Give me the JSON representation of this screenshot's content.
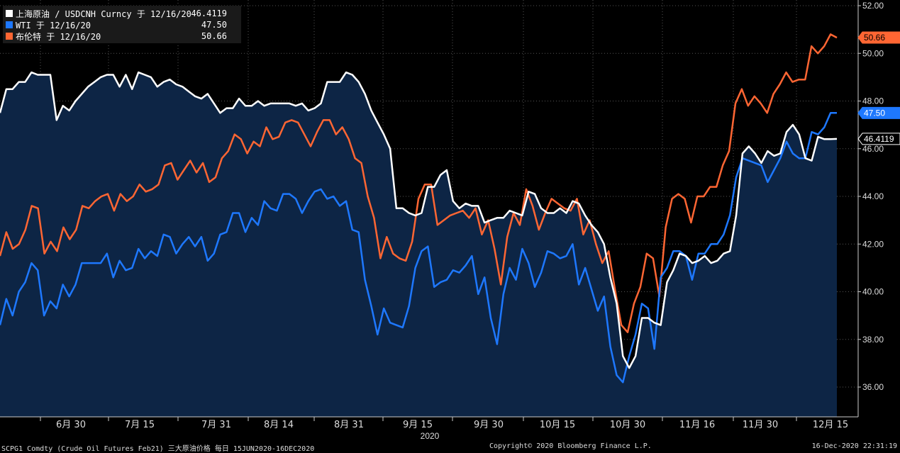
{
  "chart_data": {
    "type": "line",
    "legend": {
      "placement": "top-left",
      "entries": [
        {
          "label": "上海原油 / USDCNH Curncy 于 12/16/20",
          "value": "46.4119",
          "color": "#ffffff"
        },
        {
          "label": "WTI 于 12/16/20",
          "value": "47.50",
          "color": "#1e78ff"
        },
        {
          "label": "布伦特 于 12/16/20",
          "value": "50.66",
          "color": "#ff6633"
        }
      ]
    },
    "ylim": [
      35,
      52
    ],
    "y_ticks": [
      "52.00",
      "50.00",
      "48.00",
      "46.00",
      "44.00",
      "42.00",
      "40.00",
      "38.00",
      "36.00"
    ],
    "x_ticks": [
      "6月 30",
      "7月 15",
      "7月 31",
      "8月 14",
      "8月 31",
      "9月 15",
      "9月 30",
      "10月 15",
      "10月 30",
      "11月 16",
      "11月 30",
      "12月 15"
    ],
    "x_year_label": "2020",
    "grid": true,
    "series": [
      {
        "name": "上海原油 / USDCNH Curncy",
        "color": "#ffffff",
        "fill": "#0d2545",
        "last_label": "46.4119",
        "values": [
          47.5,
          48.5,
          48.5,
          48.8,
          48.8,
          49.2,
          49.1,
          49.1,
          49.1,
          47.2,
          47.8,
          47.6,
          48.0,
          48.3,
          48.6,
          48.8,
          49.0,
          49.1,
          49.1,
          48.6,
          49.1,
          48.5,
          49.2,
          49.1,
          49.0,
          48.6,
          48.8,
          48.9,
          48.7,
          48.6,
          48.4,
          48.2,
          48.1,
          48.3,
          47.9,
          47.5,
          47.7,
          47.7,
          48.1,
          47.8,
          47.8,
          48.0,
          47.8,
          47.9,
          47.9,
          47.9,
          47.9,
          47.8,
          47.9,
          47.6,
          47.7,
          47.9,
          48.8,
          48.8,
          48.8,
          49.2,
          49.1,
          48.8,
          48.3,
          47.6,
          47.1,
          46.6,
          46.0,
          43.5,
          43.5,
          43.3,
          43.2,
          43.3,
          44.4,
          44.4,
          44.9,
          45.1,
          43.8,
          43.5,
          43.7,
          43.6,
          43.6,
          42.9,
          43.0,
          43.1,
          43.1,
          43.4,
          43.3,
          43.2,
          44.2,
          44.1,
          43.5,
          43.3,
          43.3,
          43.5,
          43.3,
          43.8,
          43.7,
          43.2,
          42.8,
          42.5,
          42.0,
          40.6,
          39.5,
          37.3,
          36.8,
          37.3,
          38.9,
          38.9,
          38.7,
          38.6,
          40.4,
          40.9,
          41.6,
          41.5,
          41.2,
          41.3,
          41.5,
          41.2,
          41.3,
          41.6,
          41.7,
          43.2,
          45.8,
          46.1,
          45.8,
          45.4,
          45.9,
          45.7,
          45.8,
          46.7,
          47.0,
          46.6,
          45.6,
          45.5,
          46.5,
          46.4,
          46.4,
          46.4119
        ]
      },
      {
        "name": "WTI",
        "color": "#1e78ff",
        "last_label": "47.50",
        "values": [
          38.6,
          39.7,
          39.0,
          40.0,
          40.4,
          41.2,
          40.9,
          39.0,
          39.6,
          39.3,
          40.3,
          39.8,
          40.3,
          41.2,
          41.2,
          41.2,
          41.2,
          41.6,
          40.6,
          41.3,
          40.9,
          41.0,
          41.8,
          41.4,
          41.7,
          41.5,
          42.4,
          42.3,
          41.6,
          42.0,
          42.3,
          41.9,
          42.3,
          41.3,
          41.6,
          42.4,
          42.5,
          43.3,
          43.3,
          42.5,
          43.1,
          42.8,
          43.8,
          43.5,
          43.4,
          44.1,
          44.1,
          43.9,
          43.3,
          43.8,
          44.2,
          44.3,
          43.9,
          44.0,
          43.6,
          43.8,
          42.6,
          42.5,
          40.5,
          39.4,
          38.2,
          39.3,
          38.7,
          38.6,
          38.5,
          39.4,
          41.0,
          41.7,
          41.9,
          40.2,
          40.4,
          40.5,
          40.9,
          40.8,
          41.1,
          41.5,
          39.9,
          40.6,
          38.9,
          37.8,
          39.9,
          41.0,
          40.5,
          41.8,
          41.2,
          40.2,
          40.8,
          41.7,
          41.6,
          41.4,
          41.5,
          42.0,
          40.3,
          41.0,
          40.1,
          39.2,
          39.8,
          37.7,
          36.5,
          36.2,
          37.3,
          38.2,
          39.5,
          39.3,
          37.6,
          40.6,
          41.0,
          41.7,
          41.7,
          41.5,
          40.5,
          41.6,
          41.6,
          42.0,
          42.0,
          42.4,
          43.2,
          44.8,
          45.6,
          45.5,
          45.4,
          45.3,
          44.6,
          45.1,
          45.6,
          46.3,
          45.8,
          45.6,
          45.6,
          46.7,
          46.6,
          46.9,
          47.5,
          47.5
        ]
      },
      {
        "name": "布伦特",
        "color": "#ff6633",
        "last_label": "50.66",
        "values": [
          41.5,
          42.5,
          41.8,
          42.0,
          42.6,
          43.6,
          43.5,
          41.6,
          42.1,
          41.7,
          42.7,
          42.2,
          42.6,
          43.6,
          43.5,
          43.8,
          44.0,
          44.1,
          43.4,
          44.1,
          43.8,
          44.0,
          44.5,
          44.2,
          44.3,
          44.5,
          45.3,
          45.4,
          44.7,
          45.1,
          45.5,
          45.0,
          45.4,
          44.6,
          44.8,
          45.6,
          45.9,
          46.6,
          46.4,
          45.8,
          46.3,
          46.1,
          46.9,
          46.4,
          46.5,
          47.1,
          47.2,
          47.1,
          46.6,
          46.1,
          46.7,
          47.2,
          47.2,
          46.6,
          46.9,
          46.4,
          45.6,
          45.4,
          44.0,
          43.1,
          41.4,
          42.3,
          41.6,
          41.4,
          41.3,
          42.1,
          43.9,
          44.5,
          44.5,
          42.8,
          43.0,
          43.2,
          43.3,
          43.4,
          43.1,
          43.5,
          42.4,
          43.0,
          41.8,
          40.3,
          42.3,
          43.3,
          42.8,
          44.3,
          43.6,
          42.6,
          43.3,
          43.9,
          43.7,
          43.5,
          43.4,
          43.9,
          42.4,
          43.0,
          42.0,
          41.2,
          41.7,
          40.1,
          38.6,
          38.3,
          39.5,
          40.2,
          41.6,
          41.4,
          39.8,
          42.7,
          43.9,
          44.1,
          43.9,
          42.9,
          44.0,
          44.0,
          44.4,
          44.4,
          45.3,
          45.9,
          47.9,
          48.5,
          47.8,
          48.2,
          47.9,
          47.5,
          48.3,
          48.7,
          49.2,
          48.8,
          48.9,
          48.9,
          50.3,
          50.0,
          50.3,
          50.8,
          50.66
        ]
      }
    ]
  },
  "footer": {
    "left": "SCPG1 Comdty (Crude Oil Futures Feb21) 三大原油价格  每日 15JUN2020-16DEC2020",
    "center": "Copyright© 2020 Bloomberg Finance L.P.",
    "right": "16-Dec-2020 22:31:19"
  }
}
